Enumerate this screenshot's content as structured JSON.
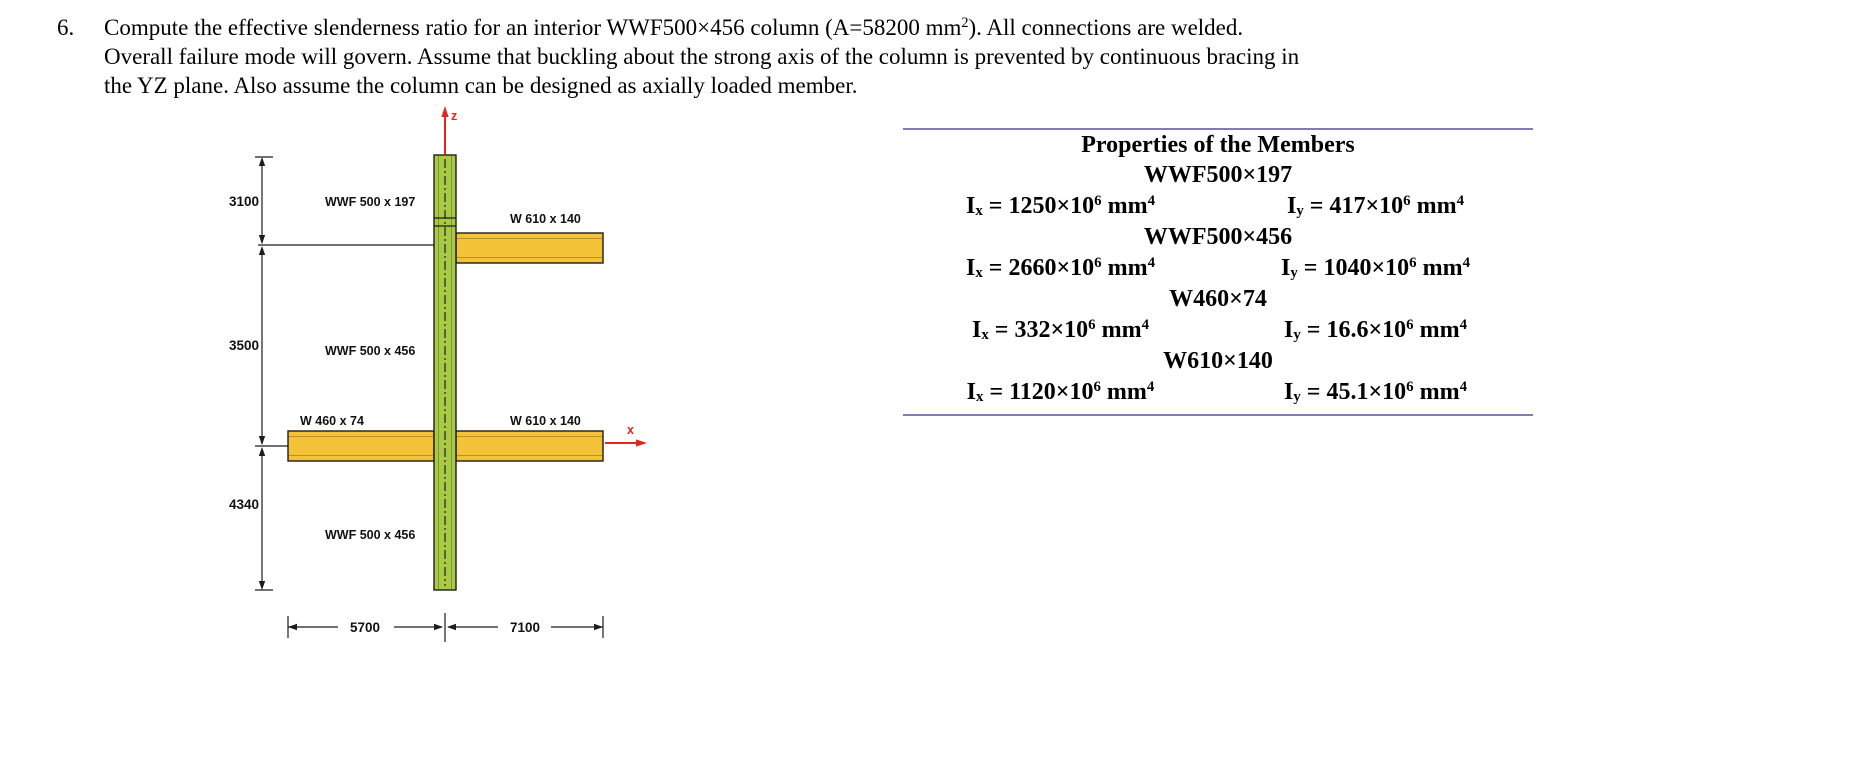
{
  "problem": {
    "number": "6.",
    "lines": [
      [
        [
          "Compute the effective slenderness ratio for an interior WWF500×456 column (A=58200 mm"
        ],
        [
          "2",
          "sup"
        ],
        [
          "). All connections are welded."
        ]
      ],
      [
        [
          "Overall failure mode will govern. Assume that buckling about the strong axis of the column is prevented by continuous bracing in"
        ]
      ],
      [
        [
          "the YZ plane. Also assume the column can be designed as axially loaded member."
        ]
      ]
    ]
  },
  "diagram": {
    "member_labels": {
      "column_top": "WWF 500 x 197",
      "beam_top_right": "W 610 x 140",
      "column_middle": "WWF 500 x 456",
      "beam_middle_left": "W 460 x 74",
      "beam_middle_right": "W 610 x 140",
      "column_bottom": "WWF 500 x 456"
    },
    "dimension_labels": {
      "upper_height": "3100",
      "middle_height": "3500",
      "lower_height": "4340",
      "left_span": "5700",
      "right_span": "7100"
    },
    "axis_labels": {
      "vertical": "z",
      "horizontal": "x"
    },
    "colors": {
      "column_fill": "#a8ca45",
      "beam_fill": "#f3c237",
      "axis": "#e62320",
      "line": "#1c1c1c"
    }
  },
  "properties": {
    "title": "Properties of the Members",
    "rule_color": "#8679ba",
    "sections": [
      {
        "name": "WWF500×197",
        "ix": [
          [
            "I"
          ],
          [
            "x",
            "sub"
          ],
          [
            " = 1250×10"
          ],
          [
            "6",
            "sup"
          ],
          [
            " mm"
          ],
          [
            "4",
            "sup"
          ]
        ],
        "iy": [
          [
            "I"
          ],
          [
            "y",
            "sub"
          ],
          [
            " = 417×10"
          ],
          [
            "6",
            "sup"
          ],
          [
            " mm"
          ],
          [
            "4",
            "sup"
          ]
        ]
      },
      {
        "name": "WWF500×456",
        "ix": [
          [
            "I"
          ],
          [
            "x",
            "sub"
          ],
          [
            " = 2660×10"
          ],
          [
            "6",
            "sup"
          ],
          [
            " mm"
          ],
          [
            "4",
            "sup"
          ]
        ],
        "iy": [
          [
            "I"
          ],
          [
            "y",
            "sub"
          ],
          [
            " = 1040×10"
          ],
          [
            "6",
            "sup"
          ],
          [
            " mm"
          ],
          [
            "4",
            "sup"
          ]
        ]
      },
      {
        "name": "W460×74",
        "ix": [
          [
            "I"
          ],
          [
            "x",
            "sub"
          ],
          [
            " = 332×10"
          ],
          [
            "6",
            "sup"
          ],
          [
            " mm"
          ],
          [
            "4",
            "sup"
          ]
        ],
        "iy": [
          [
            "I"
          ],
          [
            "y",
            "sub"
          ],
          [
            " = 16.6×10"
          ],
          [
            "6",
            "sup"
          ],
          [
            " mm"
          ],
          [
            "4",
            "sup"
          ]
        ]
      },
      {
        "name": "W610×140",
        "ix": [
          [
            "I"
          ],
          [
            "x",
            "sub"
          ],
          [
            " = 1120×10"
          ],
          [
            "6",
            "sup"
          ],
          [
            " mm"
          ],
          [
            "4",
            "sup"
          ]
        ],
        "iy": [
          [
            "I"
          ],
          [
            "y",
            "sub"
          ],
          [
            " = 45.1×10"
          ],
          [
            "6",
            "sup"
          ],
          [
            " mm"
          ],
          [
            "4",
            "sup"
          ]
        ]
      }
    ]
  }
}
